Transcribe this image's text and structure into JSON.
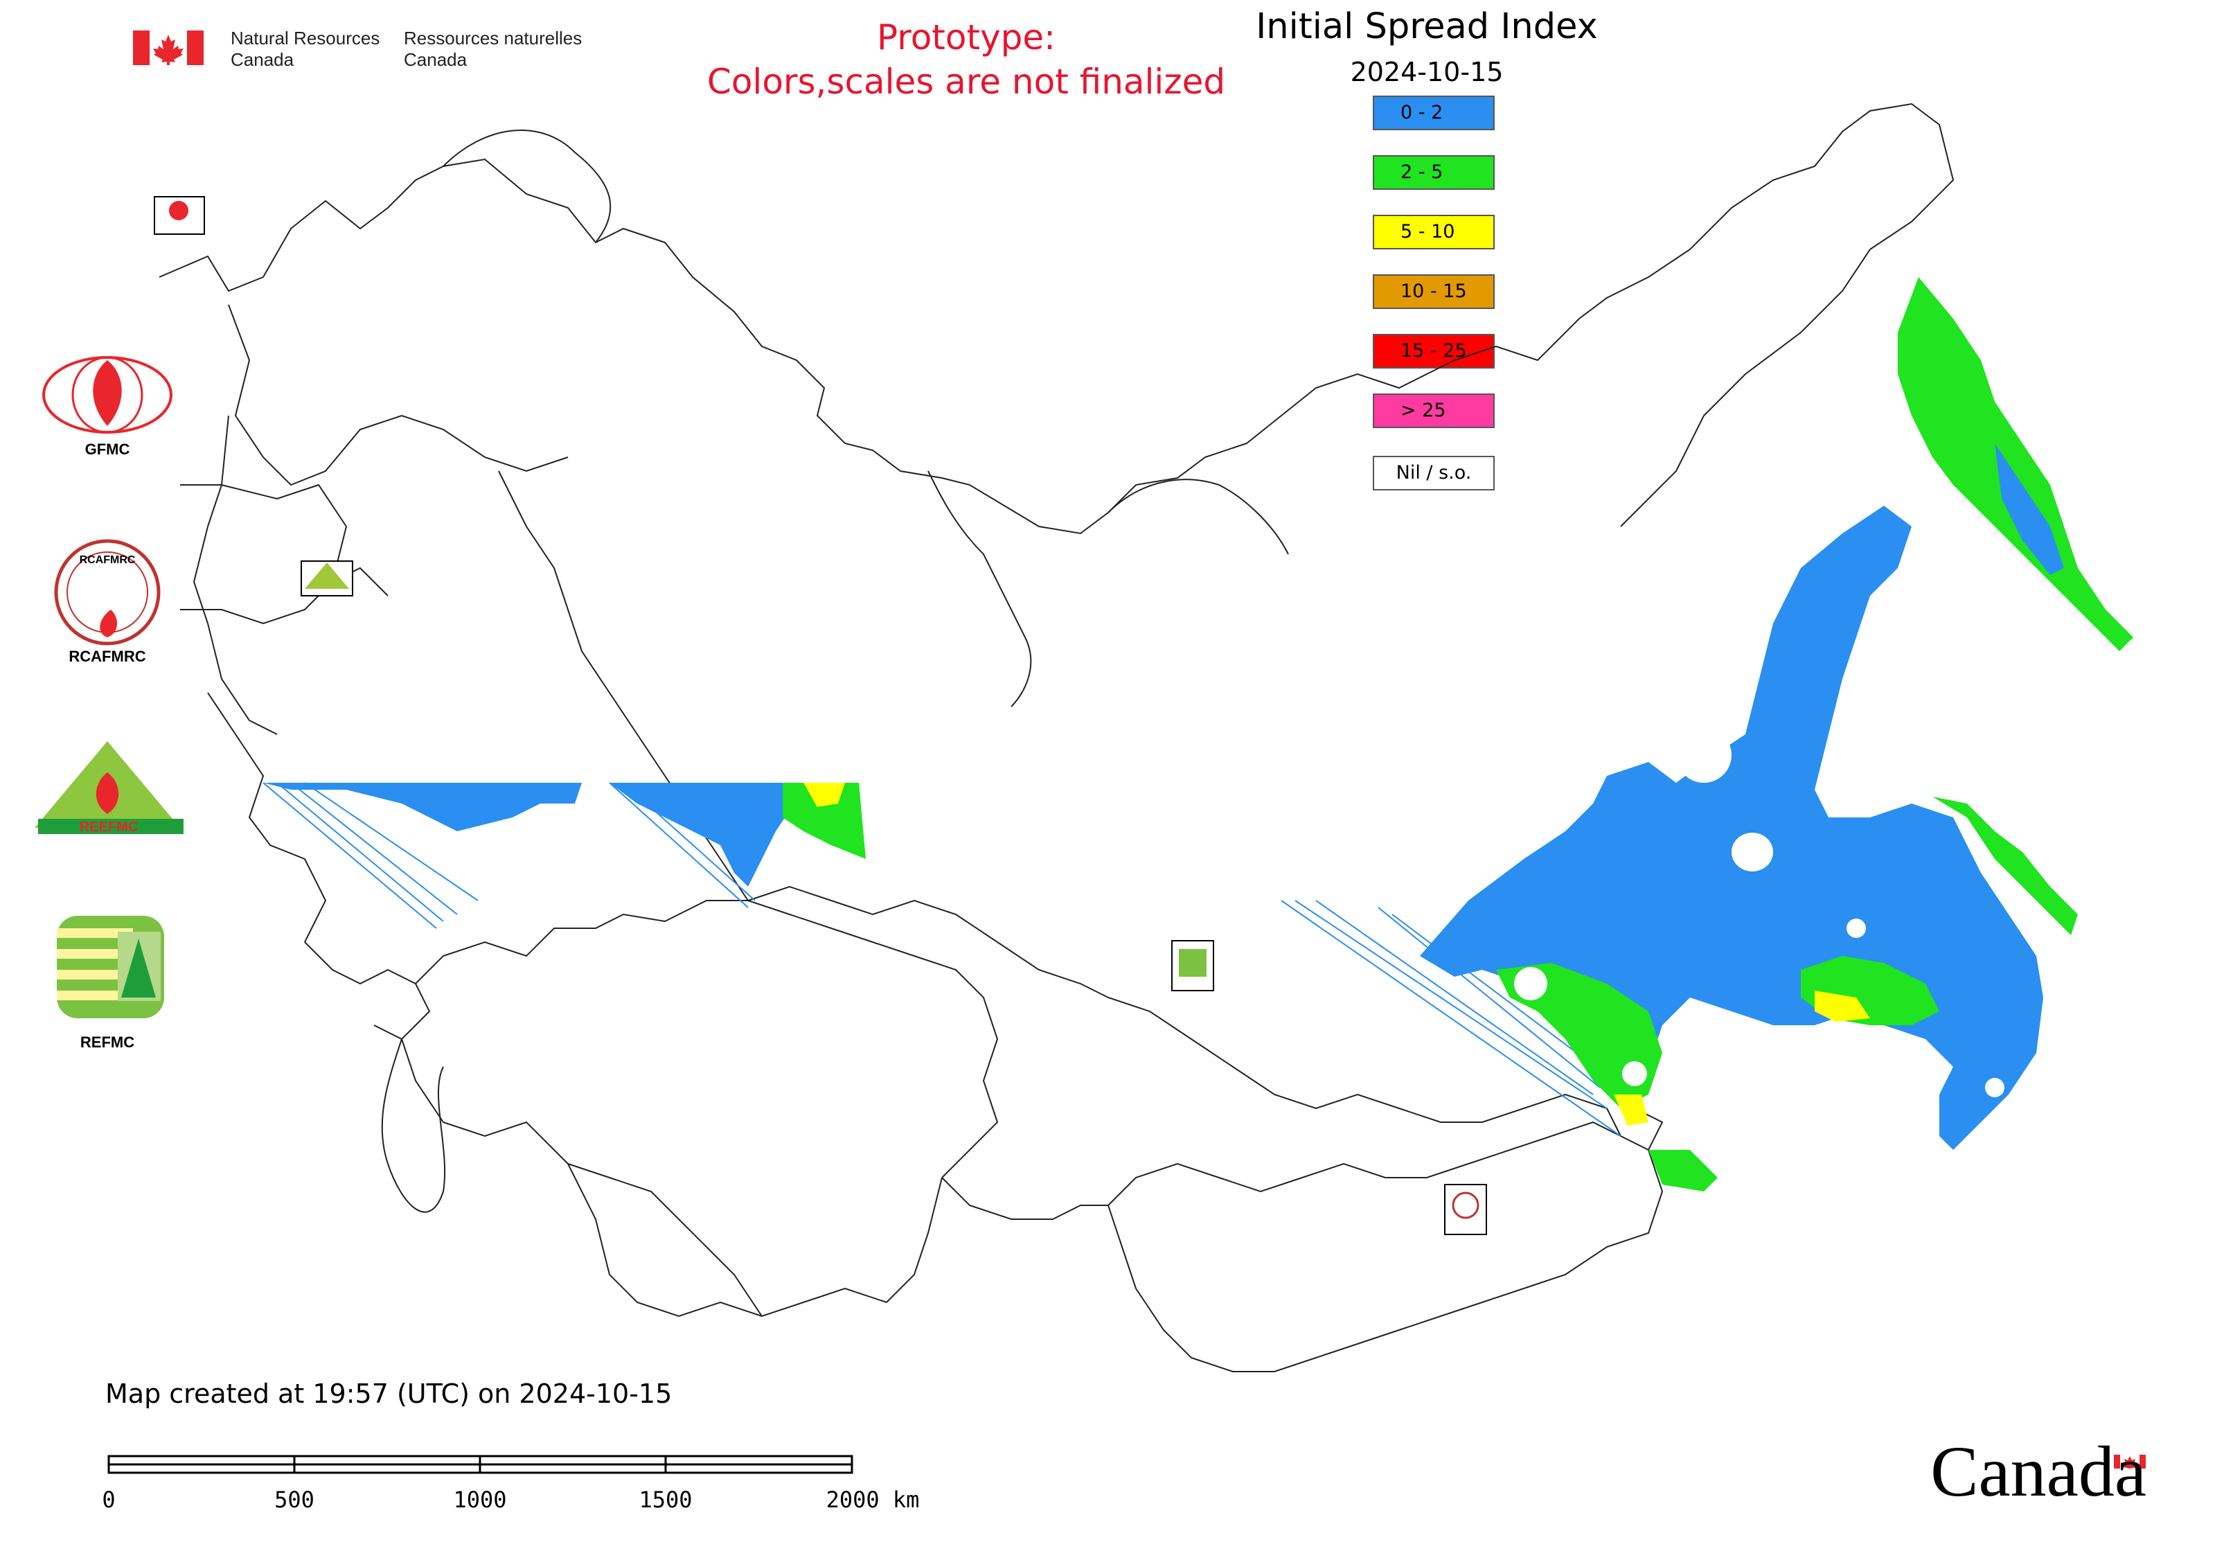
{
  "header": {
    "agency_en_line1": "Natural Resources",
    "agency_en_line2": "Canada",
    "agency_fr_line1": "Ressources naturelles",
    "agency_fr_line2": "Canada",
    "prototype_line1": "Prototype:",
    "prototype_line2": "Colors,scales are not finalized"
  },
  "map": {
    "title": "Initial Spread Index",
    "date": "2024-10-15",
    "created_note": "Map created at 19:57 (UTC) on 2024-10-15"
  },
  "legend": [
    {
      "label": "0 - 2",
      "color": "#2a8ff0"
    },
    {
      "label": "2 - 5",
      "color": "#1fe41f"
    },
    {
      "label": "5 - 10",
      "color": "#ffff00"
    },
    {
      "label": "10 - 15",
      "color": "#e29a00"
    },
    {
      "label": "15 - 25",
      "color": "#ff0000"
    },
    {
      "label": "> 25",
      "color": "#ff3aa0"
    },
    {
      "label": "Nil / s.o.",
      "color": "#ffffff"
    }
  ],
  "agencies": [
    {
      "label": "GFMC"
    },
    {
      "label": "RCAFMRC"
    },
    {
      "label": "REEFMC"
    },
    {
      "label": "REFMC"
    }
  ],
  "logo_text": {
    "rcafmrc_badge": "RCAFMRC",
    "reefmc_badge": "REEFMC"
  },
  "scale_bar": {
    "ticks": [
      "0",
      "500",
      "1000",
      "1500",
      "2000 km"
    ]
  },
  "wordmark": "Canada",
  "colors": {
    "prototype_red": "#e8142e",
    "canada_red": "#e8262b"
  }
}
